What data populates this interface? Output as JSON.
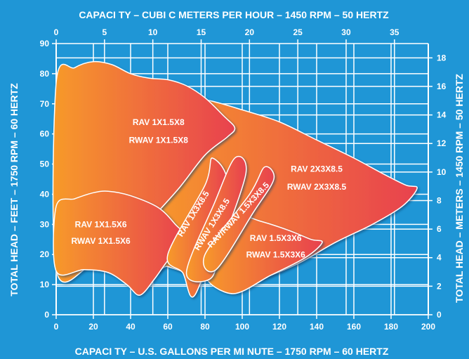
{
  "chart_data": {
    "type": "area",
    "title_top": "CAPACI TY – CUBI C METERS PER HOUR – 1450 RPM – 50 HERTZ",
    "xlabel_bottom": "CAPACI TY – U.S. GALLONS PER MI NUTE – 1750 RPM – 60 HERTZ",
    "ylabel_left": "TOTAL HEAD – FEET – 1750 RPM – 60 HERTZ",
    "ylabel_right": "TOTAL HEAD – METERS – 1450 RPM – 50 HERTZ",
    "x_bottom_ticks": [
      "0",
      "20",
      "40",
      "60",
      "80",
      "100",
      "120",
      "140",
      "160",
      "180",
      "200"
    ],
    "x_top_ticks": [
      "0",
      "5",
      "10",
      "15",
      "20",
      "25",
      "30",
      "35"
    ],
    "y_left_ticks": [
      "0",
      "10",
      "20",
      "30",
      "40",
      "50",
      "60",
      "70",
      "80",
      "90"
    ],
    "y_right_ticks": [
      "0",
      "2",
      "4",
      "6",
      "8",
      "10",
      "12",
      "14",
      "16",
      "18"
    ],
    "xlim_gpm": [
      0,
      200
    ],
    "ylim_feet": [
      0,
      90
    ],
    "xlim_m3h": [
      0,
      38.5
    ],
    "ylim_m": [
      0,
      19
    ],
    "grid": true,
    "colors": {
      "background": "#1f96d6",
      "grid": "#ffffff",
      "fill_start": "#f79a2a",
      "fill_end": "#e8414f"
    },
    "series": [
      {
        "name": "RAV 2X3X8.5 / RWAV 2X3X8.5",
        "labels": [
          "RAV 2X3X8.5",
          "RWAV 2X3X8.5"
        ],
        "outline": [
          [
            50,
            74
          ],
          [
            65,
            73
          ],
          [
            83,
            71
          ],
          [
            100,
            68
          ],
          [
            120,
            64
          ],
          [
            140,
            58
          ],
          [
            160,
            52
          ],
          [
            175,
            47
          ],
          [
            188,
            43
          ],
          [
            194,
            42
          ],
          [
            186,
            36
          ],
          [
            170,
            30
          ],
          [
            150,
            24
          ],
          [
            130,
            17
          ],
          [
            110,
            12
          ],
          [
            93,
            10
          ],
          [
            75,
            13
          ],
          [
            60,
            16
          ],
          [
            50,
            18
          ]
        ],
        "label_at": [
          [
            140,
            47.5
          ],
          [
            140,
            41.5
          ]
        ]
      },
      {
        "name": "RAV 1X1.5X8 / RWAV 1X1.5X8",
        "labels": [
          "RAV 1X1.5X8",
          "RWAV 1X1.5X8"
        ],
        "outline": [
          [
            0,
            77
          ],
          [
            10,
            82
          ],
          [
            20,
            84
          ],
          [
            30,
            83
          ],
          [
            40,
            80
          ],
          [
            50,
            78.5
          ],
          [
            60,
            78
          ],
          [
            70,
            76
          ],
          [
            80,
            72
          ],
          [
            90,
            66
          ],
          [
            96,
            62
          ],
          [
            92,
            59
          ],
          [
            80,
            53
          ],
          [
            66,
            42
          ],
          [
            50,
            31
          ],
          [
            40,
            24
          ],
          [
            30,
            18
          ],
          [
            18,
            16
          ],
          [
            0,
            15
          ]
        ],
        "label_at": [
          [
            55,
            63
          ],
          [
            55,
            57
          ]
        ]
      },
      {
        "name": "RAV 1X1.5X6 / RWAV 1X1.5X6",
        "labels": [
          "RAV 1X1.5X6",
          "RWAV 1X1.5X6"
        ],
        "outline": [
          [
            0,
            36
          ],
          [
            10,
            38.5
          ],
          [
            20,
            40.5
          ],
          [
            28,
            41
          ],
          [
            40,
            39.5
          ],
          [
            55,
            35.5
          ],
          [
            64,
            30
          ],
          [
            70,
            25
          ],
          [
            60,
            18
          ],
          [
            53,
            12
          ],
          [
            45,
            6.5
          ],
          [
            38,
            10
          ],
          [
            28,
            14
          ],
          [
            15,
            15
          ],
          [
            0,
            14.5
          ]
        ],
        "label_at": [
          [
            24,
            29
          ],
          [
            24,
            23.5
          ]
        ]
      },
      {
        "name": "RAV 1.5X3X6 / RWAV 1.5X3X6",
        "labels": [
          "RAV 1.5X3X6",
          "RWAV 1.5X3X6"
        ],
        "outline": [
          [
            95,
            33
          ],
          [
            110,
            31
          ],
          [
            125,
            28
          ],
          [
            137,
            25
          ],
          [
            143,
            24
          ],
          [
            134,
            19
          ],
          [
            115,
            13
          ],
          [
            95,
            7
          ],
          [
            80,
            13
          ],
          [
            90,
            23
          ]
        ],
        "label_at": [
          [
            118,
            24.5
          ],
          [
            118,
            19
          ]
        ]
      },
      {
        "name": "RAV 1X3X8.5 (diagonal)",
        "labels": [
          "RAV 1X3X8.5"
        ],
        "outline": [
          [
            60,
            20
          ],
          [
            80,
            43
          ],
          [
            84,
            52
          ],
          [
            92,
            41
          ],
          [
            75,
            7
          ],
          [
            68,
            14
          ]
        ],
        "label_at": [
          [
            75,
            33
          ]
        ],
        "label_rotation": -58
      },
      {
        "name": "RWAV 1X3X8.5 (diagonal)",
        "labels": [
          "RWAV 1X3X8.5"
        ],
        "outline": [
          [
            70,
            14
          ],
          [
            85,
            37
          ],
          [
            96,
            52
          ],
          [
            102,
            47
          ],
          [
            89,
            23
          ],
          [
            83,
            12
          ]
        ],
        "label_at": [
          [
            85,
            29.5
          ]
        ],
        "label_rotation": -58
      },
      {
        "name": "RAV/RWAV 1.5X3X8.5 (diagonal)",
        "labels": [
          "RAV/RWAV 1.5X3X8.5"
        ],
        "outline": [
          [
            80,
            20
          ],
          [
            104,
            40
          ],
          [
            112,
            49
          ],
          [
            117,
            45
          ],
          [
            106,
            34
          ],
          [
            86,
            15
          ]
        ],
        "label_at": [
          [
            99,
            32.5
          ]
        ],
        "label_rotation": -47
      }
    ]
  }
}
